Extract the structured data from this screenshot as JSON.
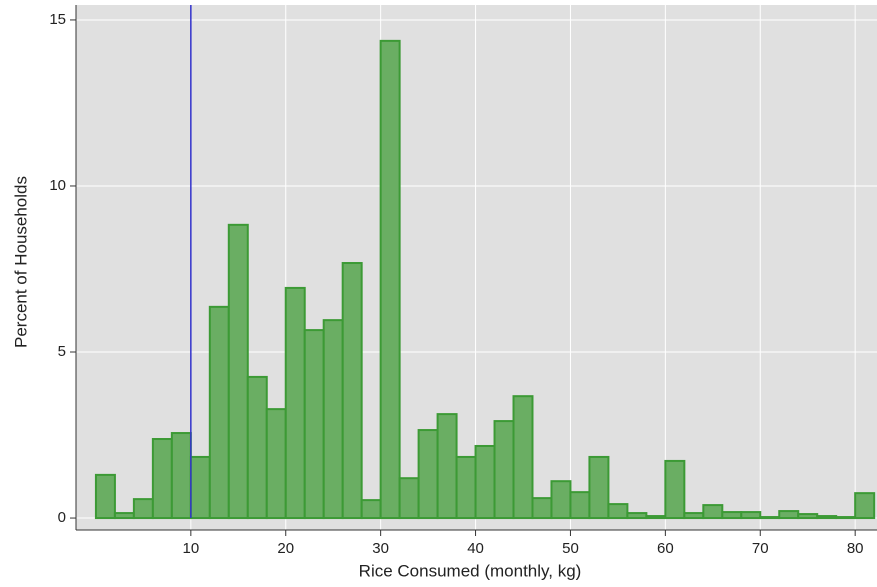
{
  "chart_data": {
    "type": "histogram",
    "xlabel": "Rice Consumed (monthly, kg)",
    "ylabel": "Percent of Households",
    "bins": [
      0,
      2,
      4,
      6,
      8,
      10,
      12,
      14,
      16,
      18,
      20,
      22,
      24,
      26,
      28,
      30,
      32,
      34,
      36,
      38,
      40,
      42,
      44,
      46,
      48,
      50,
      52,
      54,
      56,
      58,
      60,
      62,
      64,
      66,
      68,
      70,
      72,
      74,
      76,
      78,
      80,
      82
    ],
    "values": [
      1.3,
      0.15,
      0.57,
      2.38,
      2.56,
      1.84,
      6.36,
      8.83,
      4.25,
      3.28,
      6.93,
      5.66,
      5.96,
      7.68,
      0.54,
      14.37,
      1.2,
      2.65,
      3.13,
      1.84,
      2.17,
      2.92,
      3.67,
      0.6,
      1.11,
      0.78,
      1.84,
      0.42,
      0.15,
      0.06,
      1.72,
      0.15,
      0.39,
      0.18,
      0.18,
      0.03,
      0.21,
      0.12,
      0.06,
      0.03,
      0.75
    ],
    "color": "#6aae63",
    "edge_color": "#3c9a35",
    "vline": 10,
    "vline_color": "#3333cc",
    "xlim": [
      -2.1,
      82.3
    ],
    "ylim": [
      -0.36,
      15.45
    ],
    "xticks": [
      10,
      20,
      30,
      40,
      50,
      60,
      70,
      80
    ],
    "yticks": [
      0,
      5,
      10,
      15
    ],
    "grid": true,
    "background": "#e0e0e0"
  }
}
